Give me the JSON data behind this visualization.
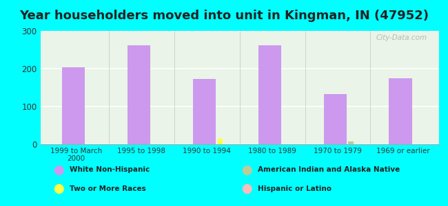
{
  "title": "Year householders moved into unit in Kingman, IN (47952)",
  "background_color": "#00FFFF",
  "categories": [
    "1999 to March\n2000",
    "1995 to 1998",
    "1990 to 1994",
    "1980 to 1989",
    "1970 to 1979",
    "1969 or earlier"
  ],
  "series": {
    "White Non-Hispanic": {
      "color": "#cc99ee",
      "values": [
        204,
        261,
        172,
        262,
        132,
        174
      ]
    },
    "Two or More Races": {
      "color": "#ffff44",
      "values": [
        0,
        0,
        14,
        0,
        0,
        0
      ]
    },
    "American Indian and Alaska Native": {
      "color": "#bbcc99",
      "values": [
        0,
        0,
        0,
        0,
        7,
        0
      ]
    },
    "Hispanic or Latino": {
      "color": "#ffbbbb",
      "values": [
        0,
        0,
        0,
        0,
        0,
        0
      ]
    }
  },
  "ylim": [
    0,
    300
  ],
  "yticks": [
    0,
    100,
    200,
    300
  ],
  "title_fontsize": 13,
  "watermark": "City-Data.com",
  "legend_items": [
    [
      "White Non-Hispanic",
      "#cc99ee"
    ],
    [
      "Two or More Races",
      "#ffff44"
    ],
    [
      "American Indian and Alaska Native",
      "#bbcc99"
    ],
    [
      "Hispanic or Latino",
      "#ffbbbb"
    ]
  ]
}
